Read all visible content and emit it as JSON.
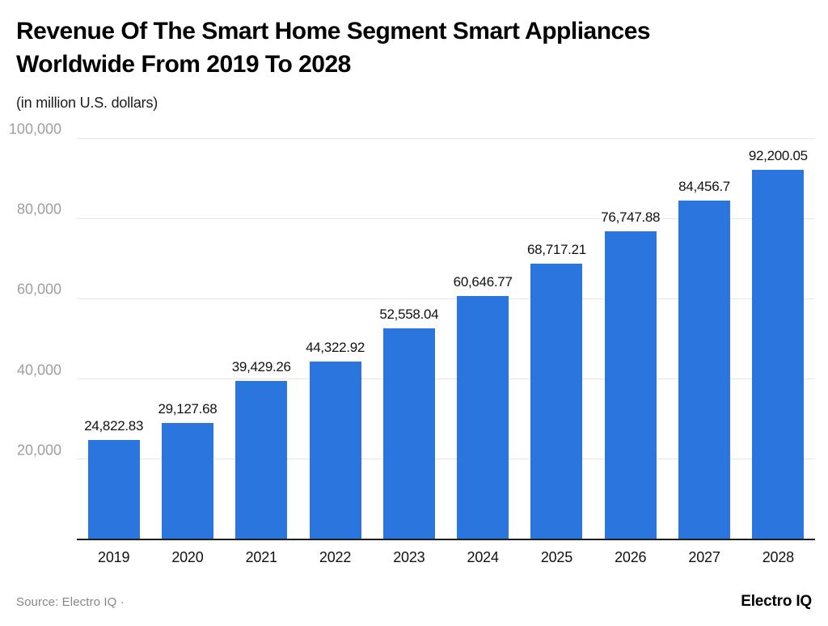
{
  "header": {
    "title_line1": "Revenue Of The Smart Home Segment Smart Appliances",
    "title_line2": "Worldwide From 2019 To 2028",
    "subtitle": "(in million U.S. dollars)"
  },
  "footer": {
    "source": "Source: Electro IQ ·",
    "brand": "Electro IQ"
  },
  "colors": {
    "bar": "#2b76de",
    "gridline": "#e6e6e6",
    "ytick_label": "#9e9e9e",
    "axis_line": "#1f1f1f",
    "value_label": "#111111",
    "source_text": "#878787"
  },
  "chart_data": {
    "type": "bar",
    "title": "Revenue Of The Smart Home Segment Smart Appliances Worldwide From 2019 To 2028",
    "subtitle": "(in million U.S. dollars)",
    "categories": [
      "2019",
      "2020",
      "2021",
      "2022",
      "2023",
      "2024",
      "2025",
      "2026",
      "2027",
      "2028"
    ],
    "values": [
      24822.83,
      29127.68,
      39429.26,
      44322.92,
      52558.04,
      60646.77,
      68717.21,
      76747.88,
      84456.7,
      92200.05
    ],
    "value_labels": [
      "24,822.83",
      "29,127.68",
      "39,429.26",
      "44,322.92",
      "52,558.04",
      "60,646.77",
      "68,717.21",
      "76,747.88",
      "84,456.7",
      "92,200.05"
    ],
    "xlabel": "",
    "ylabel": "(in million U.S. dollars)",
    "ylim": [
      0,
      100000
    ],
    "yticks": [
      20000,
      40000,
      60000,
      80000,
      100000
    ],
    "ytick_labels": [
      "20,000",
      "40,000",
      "60,000",
      "80,000",
      "100,000"
    ],
    "grid": true,
    "legend": "none",
    "bar_color": "#2b76de"
  }
}
